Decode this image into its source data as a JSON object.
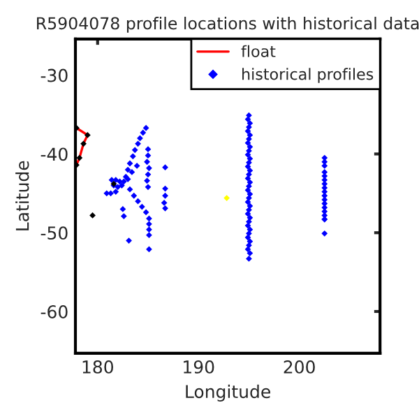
{
  "chart_data": {
    "type": "scatter",
    "title": "R5904078 profile locations with historical data",
    "xlabel": "Longitude",
    "ylabel": "Latitude",
    "xlim": [
      177.8,
      208
    ],
    "ylim": [
      -65.3,
      -25.4
    ],
    "xticks": [
      180,
      190,
      200
    ],
    "yticks": [
      -60,
      -50,
      -40,
      -30
    ],
    "grid": false,
    "legend": "top right",
    "marker": "diamond",
    "series": [
      {
        "name": "float",
        "type": "line",
        "marker": "none",
        "color": "#ff0000",
        "x": [
          177.9,
          179.0,
          178.6,
          178.2,
          177.9
        ],
        "values": [
          -36.7,
          -37.6,
          -38.7,
          -40.5,
          -41.4
        ]
      },
      {
        "name": "historical profiles",
        "color": "#0000ff",
        "x": [
          184.8,
          184.5,
          184.2,
          184.0,
          183.7,
          183.5,
          183.2,
          183.0,
          182.8,
          181.4,
          181.8,
          182.2,
          182.6,
          183.0,
          181.6,
          182.0,
          182.4,
          180.9,
          181.3,
          181.8,
          183.2,
          183.6,
          184.0,
          184.4,
          184.8,
          185.1,
          185.1,
          185.1,
          185.1,
          183.4,
          183.9,
          185.0,
          185.0,
          184.9,
          185.1,
          185.0,
          184.9,
          185.0,
          186.7,
          186.7,
          186.7,
          186.6,
          186.7,
          182.5,
          182.6,
          183.1,
          185.1,
          195.0,
          194.9,
          195.1,
          195.0,
          194.9,
          195.1,
          195.0,
          194.9,
          195.1,
          195.0,
          194.9,
          195.1,
          195.0,
          194.9,
          195.1,
          195.0,
          194.9,
          195.1,
          195.0,
          194.9,
          195.1,
          195.0,
          194.9,
          195.1,
          195.0,
          194.9,
          195.1,
          195.0,
          194.9,
          195.1,
          195.0,
          194.9,
          195.1,
          195.0,
          194.9,
          195.1,
          195.0,
          202.5,
          202.5,
          202.5,
          202.5,
          202.5,
          202.5,
          202.5,
          202.5,
          202.5,
          202.5,
          202.5,
          202.5,
          202.5,
          202.5,
          202.5,
          202.5,
          202.5,
          202.5
        ],
        "values": [
          -36.7,
          -37.3,
          -38.0,
          -38.7,
          -39.5,
          -40.3,
          -41.2,
          -42.0,
          -42.9,
          -43.3,
          -43.3,
          -43.5,
          -43.5,
          -43.2,
          -44.0,
          -44.2,
          -44.0,
          -45.0,
          -45.0,
          -44.8,
          -44.5,
          -45.3,
          -46.0,
          -46.7,
          -47.4,
          -48.2,
          -48.9,
          -49.6,
          -50.3,
          -42.3,
          -41.5,
          -39.4,
          -40.2,
          -41.0,
          -41.8,
          -42.6,
          -43.4,
          -44.2,
          -41.7,
          -44.4,
          -45.3,
          -46.2,
          -46.9,
          -47.0,
          -47.9,
          -51.0,
          -52.1,
          -35.1,
          -35.6,
          -36.1,
          -36.6,
          -37.1,
          -37.6,
          -38.1,
          -38.6,
          -39.1,
          -39.6,
          -40.1,
          -40.6,
          -41.1,
          -41.6,
          -42.1,
          -42.6,
          -43.1,
          -43.6,
          -44.1,
          -44.6,
          -45.1,
          -45.6,
          -46.1,
          -46.6,
          -47.1,
          -47.6,
          -48.1,
          -48.6,
          -49.1,
          -49.6,
          -50.1,
          -50.6,
          -51.1,
          -51.6,
          -52.1,
          -52.6,
          -53.3,
          -40.5,
          -41.0,
          -41.5,
          -42.3,
          -42.8,
          -43.3,
          -43.8,
          -44.3,
          -44.8,
          -45.3,
          -45.8,
          -46.3,
          -46.8,
          -47.3,
          -47.8,
          -48.3,
          -48.3,
          -50.1
        ]
      },
      {
        "color": "#000000",
        "x": [
          177.9,
          179.0,
          178.6,
          178.2,
          177.9,
          181.6,
          179.5
        ],
        "values": [
          -36.7,
          -37.6,
          -38.7,
          -40.5,
          -41.4,
          -43.8,
          -47.8
        ]
      },
      {
        "color": "#ffff00",
        "x": [
          192.8
        ],
        "values": [
          -45.6
        ]
      }
    ]
  }
}
